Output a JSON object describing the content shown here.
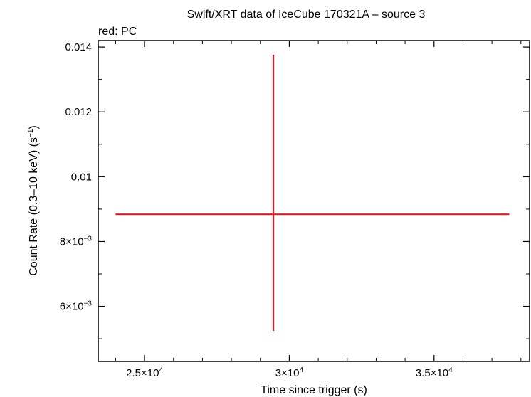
{
  "chart_data": {
    "type": "scatter",
    "title": "Swift/XRT data of IceCube 170321A – source 3",
    "subtitle": "red: PC",
    "xlabel": "Time since trigger (s)",
    "ylabel_main": "Count Rate (0.3–10 keV) (s",
    "ylabel_sup": "−1",
    "ylabel_close": ")",
    "xlim": [
      23400,
      38300
    ],
    "ylim": [
      0.0043,
      0.0142
    ],
    "x_ticks": [
      {
        "value": 25000,
        "mant": "2.5×10",
        "exp": "4"
      },
      {
        "value": 30000,
        "mant": "3×10",
        "exp": "4"
      },
      {
        "value": 35000,
        "mant": "3.5×10",
        "exp": "4"
      }
    ],
    "y_ticks": [
      {
        "value": 0.006,
        "mant": "6×10",
        "exp": "−3"
      },
      {
        "value": 0.008,
        "mant": "8×10",
        "exp": "−3"
      },
      {
        "value": 0.01,
        "mant": "0.01",
        "exp": ""
      },
      {
        "value": 0.012,
        "mant": "0.012",
        "exp": ""
      },
      {
        "value": 0.014,
        "mant": "0.014",
        "exp": ""
      }
    ],
    "series": [
      {
        "color": "#e8191b",
        "points": [
          {
            "x": 29450,
            "y": 0.00884,
            "xlo": 24000,
            "xhi": 37600,
            "ylo": 0.00524,
            "yhi": 0.01376
          }
        ]
      }
    ],
    "grid": false
  }
}
